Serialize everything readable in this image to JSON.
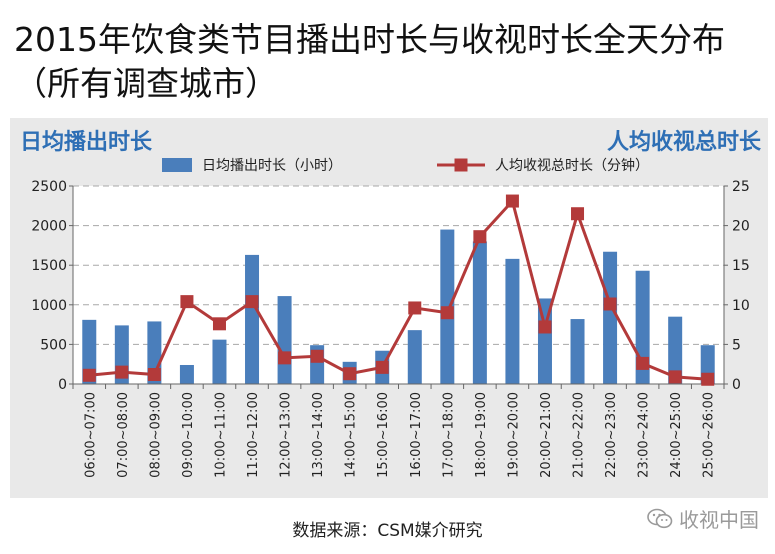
{
  "title": "2015年饮食类节目播出时长与收视时长全天分布 （所有调查城市）",
  "watermark": "收视中国",
  "source": "数据来源：CSM媒介研究",
  "chart_data": {
    "type": "bar+line",
    "y_left_label": "日均播出时长",
    "y_right_label": "人均收视总时长",
    "categories": [
      "06:00~07:00",
      "07:00~08:00",
      "08:00~09:00",
      "09:00~10:00",
      "10:00~11:00",
      "11:00~12:00",
      "12:00~13:00",
      "13:00~14:00",
      "14:00~15:00",
      "15:00~16:00",
      "16:00~17:00",
      "17:00~18:00",
      "18:00~19:00",
      "19:00~20:00",
      "20:00~21:00",
      "21:00~22:00",
      "22:00~23:00",
      "23:00~24:00",
      "24:00~25:00",
      "25:00~26:00"
    ],
    "y_left_lim": [
      0,
      2500
    ],
    "y_left_ticks": [
      "0",
      "500",
      "1000",
      "1500",
      "2000",
      "2500"
    ],
    "y_right_lim": [
      0,
      25
    ],
    "y_right_ticks": [
      "0",
      "5",
      "10",
      "15",
      "20",
      "25"
    ],
    "grid": true,
    "legend_position": "top-center",
    "series": [
      {
        "name": "日均播出时长（小时）",
        "type": "bar",
        "axis": "left",
        "color": "#4a7ebb",
        "values": [
          810,
          740,
          790,
          240,
          560,
          1630,
          1110,
          490,
          280,
          420,
          680,
          1950,
          1800,
          1580,
          1080,
          820,
          1670,
          1430,
          850,
          490
        ]
      },
      {
        "name": "人均收视总时长（分钟）",
        "type": "line",
        "axis": "right",
        "color": "#b33a3a",
        "values": [
          1.1,
          1.5,
          1.2,
          10.4,
          7.6,
          10.4,
          3.3,
          3.5,
          1.3,
          2.1,
          9.6,
          9.0,
          18.6,
          23.1,
          7.2,
          21.5,
          10.1,
          2.6,
          0.9,
          0.6
        ]
      }
    ]
  }
}
